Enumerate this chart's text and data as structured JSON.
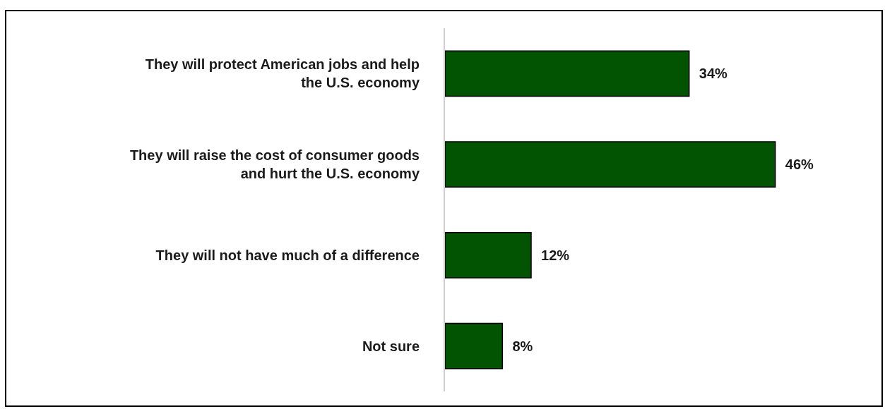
{
  "chart_data": {
    "type": "bar",
    "orientation": "horizontal",
    "categories": [
      "They will protect American jobs and help the U.S. economy",
      "They will raise the cost of consumer goods and hurt the U.S. economy",
      "They will not have much of a difference",
      "Not sure"
    ],
    "values": [
      34,
      46,
      12,
      8
    ],
    "value_labels": [
      "34%",
      "46%",
      "12%",
      "8%"
    ],
    "color": "#025402",
    "tick_labels": "y"
  }
}
